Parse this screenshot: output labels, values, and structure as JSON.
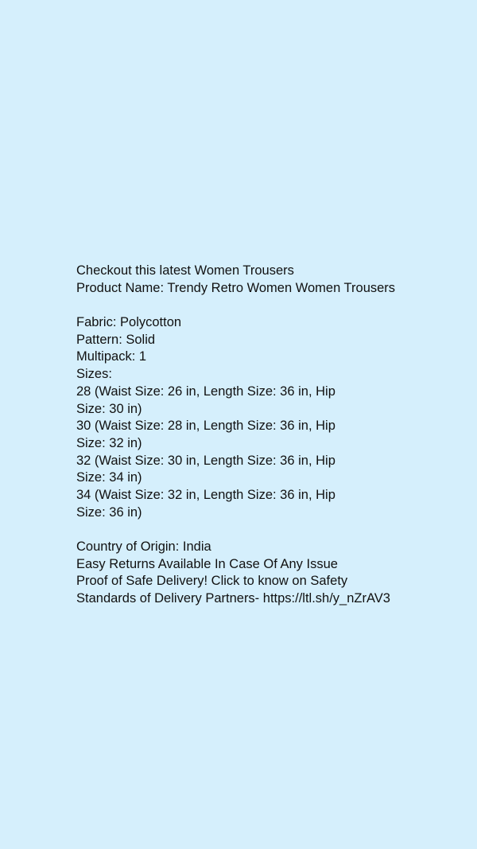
{
  "intro": {
    "headline": "Checkout this latest Women Trousers",
    "product_name": "Product Name: Trendy Retro Women Women Trousers"
  },
  "details": {
    "fabric": "Fabric: Polycotton",
    "pattern": "Pattern: Solid",
    "multipack": "Multipack: 1",
    "sizes_label": "Sizes:",
    "sizes": [
      {
        "line1": "28 (Waist Size: 26 in, Length Size: 36 in, Hip",
        "line2": "Size: 30 in)"
      },
      {
        "line1": "30 (Waist Size: 28 in, Length Size: 36 in, Hip",
        "line2": "Size: 32 in)"
      },
      {
        "line1": "32 (Waist Size: 30 in, Length Size: 36 in, Hip",
        "line2": "Size: 34 in)"
      },
      {
        "line1": "34 (Waist Size: 32 in, Length Size: 36 in, Hip",
        "line2": "Size: 36 in)"
      }
    ]
  },
  "footer": {
    "origin": "Country of Origin: India",
    "returns": "Easy Returns Available In Case Of Any Issue",
    "delivery_line1": "Proof of Safe Delivery! Click to know on Safety",
    "delivery_line2": "Standards of Delivery Partners- https://ltl.sh/y_nZrAV3"
  }
}
